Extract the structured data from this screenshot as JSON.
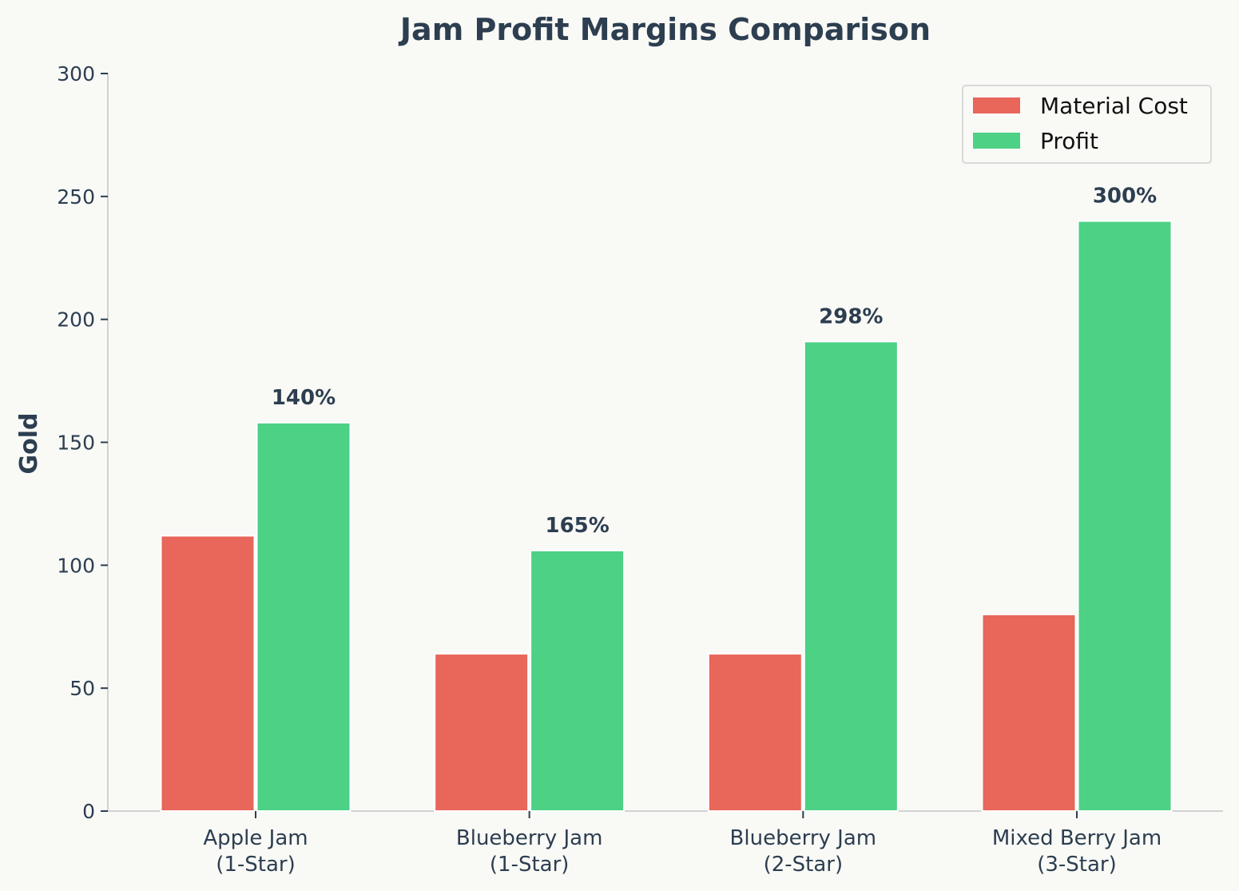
{
  "chart_data": {
    "type": "bar",
    "title": "Jam Profit Margins Comparison",
    "xlabel": "",
    "ylabel": "Gold",
    "ylim": [
      0,
      300
    ],
    "yticks": [
      0,
      50,
      100,
      150,
      200,
      250,
      300
    ],
    "categories": [
      "Apple Jam\n(1-Star)",
      "Blueberry Jam\n(1-Star)",
      "Blueberry Jam\n(2-Star)",
      "Mixed Berry Jam\n(3-Star)"
    ],
    "series": [
      {
        "name": "Material Cost",
        "color": "#e8665a",
        "values": [
          112,
          64,
          64,
          80
        ]
      },
      {
        "name": "Profit",
        "color": "#4cd185",
        "values": [
          158,
          106,
          191,
          240
        ]
      }
    ],
    "annotations": [
      "140%",
      "165%",
      "298%",
      "300%"
    ],
    "legend": "top-right",
    "grid": false
  }
}
